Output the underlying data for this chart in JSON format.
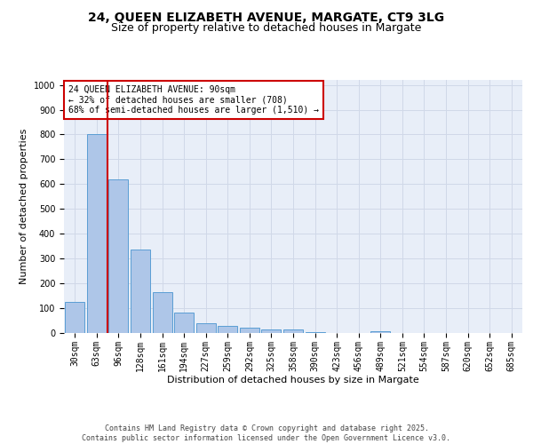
{
  "title1": "24, QUEEN ELIZABETH AVENUE, MARGATE, CT9 3LG",
  "title2": "Size of property relative to detached houses in Margate",
  "xlabel": "Distribution of detached houses by size in Margate",
  "ylabel": "Number of detached properties",
  "categories": [
    "30sqm",
    "63sqm",
    "96sqm",
    "128sqm",
    "161sqm",
    "194sqm",
    "227sqm",
    "259sqm",
    "292sqm",
    "325sqm",
    "358sqm",
    "390sqm",
    "423sqm",
    "456sqm",
    "489sqm",
    "521sqm",
    "554sqm",
    "587sqm",
    "620sqm",
    "652sqm",
    "685sqm"
  ],
  "values": [
    125,
    800,
    620,
    335,
    165,
    82,
    40,
    27,
    22,
    15,
    15,
    5,
    0,
    0,
    8,
    0,
    0,
    0,
    0,
    0,
    0
  ],
  "bar_color": "#aec6e8",
  "bar_edge_color": "#5a9ed4",
  "grid_color": "#d0d8e8",
  "background_color": "#e8eef8",
  "vline_x_index": 2,
  "vline_color": "#cc0000",
  "annotation_text": "24 QUEEN ELIZABETH AVENUE: 90sqm\n← 32% of detached houses are smaller (708)\n68% of semi-detached houses are larger (1,510) →",
  "annotation_box_color": "#cc0000",
  "ylim": [
    0,
    1020
  ],
  "yticks": [
    0,
    100,
    200,
    300,
    400,
    500,
    600,
    700,
    800,
    900,
    1000
  ],
  "footer1": "Contains HM Land Registry data © Crown copyright and database right 2025.",
  "footer2": "Contains public sector information licensed under the Open Government Licence v3.0.",
  "title_fontsize": 10,
  "subtitle_fontsize": 9,
  "tick_fontsize": 7,
  "ylabel_fontsize": 8,
  "xlabel_fontsize": 8,
  "annotation_fontsize": 7,
  "footer_fontsize": 6
}
